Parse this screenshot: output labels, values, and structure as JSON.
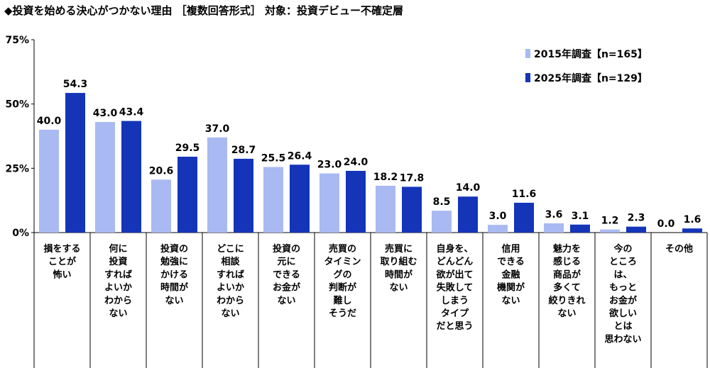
{
  "chart_data": {
    "type": "bar",
    "title": "◆投資を始める決心がつかない理由 ［複数回答形式］ 対象：投資デビュー不確定層",
    "ylim": [
      0,
      75
    ],
    "yticks": [
      "0%",
      "25%",
      "50%",
      "75%"
    ],
    "categories": [
      [
        "損をする",
        "ことが",
        "怖い"
      ],
      [
        "何に",
        "投資",
        "すれば",
        "よいか",
        "わから",
        "ない"
      ],
      [
        "投資の",
        "勉強に",
        "かける",
        "時間が",
        "ない"
      ],
      [
        "どこに",
        "相談",
        "すれば",
        "よいか",
        "わから",
        "ない"
      ],
      [
        "投資の",
        "元に",
        "できる",
        "お金が",
        "ない"
      ],
      [
        "売買の",
        "タイミン",
        "グの",
        "判断が",
        "難し",
        "そうだ"
      ],
      [
        "売買に",
        "取り組む",
        "時間が",
        "ない"
      ],
      [
        "自身を、",
        "どんどん",
        "欲が出て",
        "失敗して",
        "しまう",
        "タイプ",
        "だと思う"
      ],
      [
        "信用",
        "できる",
        "金融",
        "機関が",
        "ない"
      ],
      [
        "魅力を",
        "感じる",
        "商品が",
        "多くて",
        "絞りきれ",
        "ない"
      ],
      [
        "今の",
        "ところ",
        "は、",
        "もっと",
        "お金が",
        "欲しい",
        "とは",
        "思わない"
      ],
      [
        "その他"
      ]
    ],
    "series": [
      {
        "name": "2015年調査【n=165】",
        "color": "#a9b9f2",
        "values": [
          40.0,
          43.0,
          20.6,
          37.0,
          25.5,
          23.0,
          18.2,
          8.5,
          3.0,
          3.6,
          1.2,
          0.0
        ],
        "labels": [
          "40.0",
          "43.0",
          "20.6",
          "37.0",
          "25.5",
          "23.0",
          "18.2",
          "8.5",
          "3.0",
          "3.6",
          "1.2",
          "0.0"
        ]
      },
      {
        "name": "2025年調査【n=129】",
        "color": "#1435b8",
        "values": [
          54.3,
          43.4,
          29.5,
          28.7,
          26.4,
          24.0,
          17.8,
          14.0,
          11.6,
          3.1,
          2.3,
          1.6
        ],
        "labels": [
          "54.3",
          "43.4",
          "29.5",
          "28.7",
          "26.4",
          "24.0",
          "17.8",
          "14.0",
          "11.6",
          "3.1",
          "2.3",
          "1.6"
        ]
      }
    ],
    "legend_position": "top-right",
    "grid": false
  }
}
